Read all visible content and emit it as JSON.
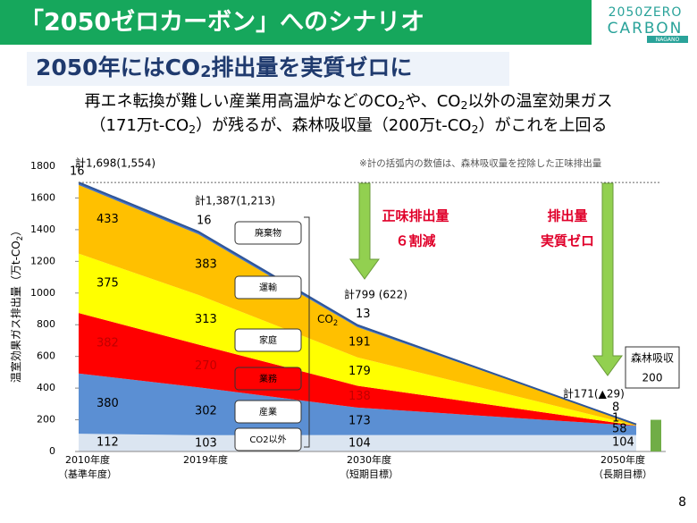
{
  "header": {
    "title": "「2050ゼロカーボン」へのシナリオ",
    "logo": [
      "2050ZERO",
      "CARBON",
      "NAGANO"
    ]
  },
  "subtitle": [
    "2050年にはCO",
    "2",
    "排出量を実質ゼロに"
  ],
  "description": [
    [
      "再エネ転換が難しい産業用高温炉などのCO",
      "2",
      "や、CO",
      "2",
      "以外の温室効果ガス"
    ],
    [
      "（171万t-CO",
      "2",
      "）が残るが、森林吸収量（200万t-CO",
      "2",
      "）がこれを上回る"
    ]
  ],
  "chart_data": {
    "type": "area",
    "stacked": true,
    "y_label": [
      "温室効果ガス排出量（万t-CO",
      "2",
      "）"
    ],
    "categories": [
      "2010年度",
      "2019年度",
      "2030年度",
      "2050年度"
    ],
    "category_notes": [
      "（基準年度）",
      null,
      "（短期目標）",
      "（長期目標）"
    ],
    "ylim": [
      0,
      1800
    ],
    "yticks": [
      0,
      200,
      400,
      600,
      800,
      1000,
      1200,
      1400,
      1600,
      1800
    ],
    "series": [
      {
        "name": "CO2以外",
        "color": "#dbe5f1",
        "label_color": "#000000",
        "values": [
          112,
          103,
          104,
          104
        ]
      },
      {
        "name": "産業",
        "color": "#5b8fd3",
        "label_color": "#000000",
        "values": [
          380,
          302,
          173,
          58
        ]
      },
      {
        "name": "業務",
        "color": "#ff0000",
        "label_color": "#c00000",
        "values": [
          382,
          270,
          138,
          1
        ]
      },
      {
        "name": "家庭",
        "color": "#ffff00",
        "label_color": "#000000",
        "values": [
          375,
          313,
          179,
          0
        ]
      },
      {
        "name": "運輸",
        "color": "#ffc000",
        "label_color": "#000000",
        "values": [
          433,
          383,
          191,
          8
        ]
      },
      {
        "name": "廃棄物",
        "color": "#4472c4",
        "label_color": "#000000",
        "values": [
          16,
          16,
          13,
          0
        ]
      }
    ],
    "totals": [
      "計1,698(1,554)",
      "計1,387(1,213)",
      "計799 (622)",
      "計171(▲29)"
    ],
    "note": "※計の括弧内の数値は、森林吸収量を控除した正味排出量",
    "bracket_label": [
      "CO",
      "2"
    ],
    "arrows": [
      {
        "lines": [
          "正味排出量",
          "６割減"
        ]
      },
      {
        "lines": [
          "排出量",
          "実質ゼロ"
        ]
      }
    ],
    "forest": {
      "name": "森林吸収",
      "value": 200,
      "color": "#70ad47"
    }
  },
  "page_number": "8"
}
